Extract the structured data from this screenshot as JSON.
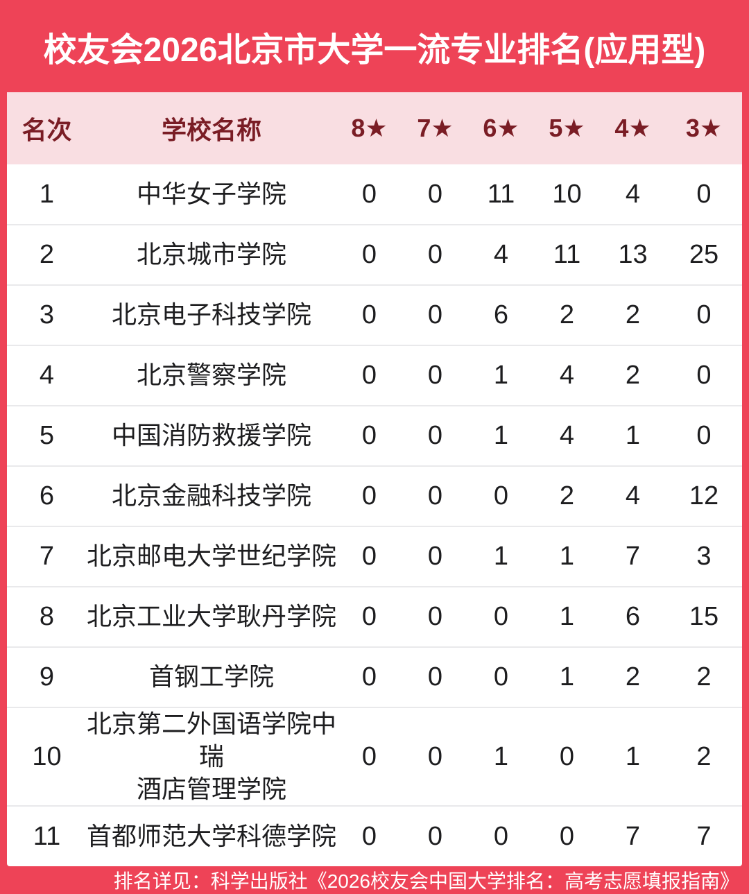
{
  "title": "校友会2026北京市大学一流专业排名(应用型)",
  "footer_note": "排名详见：科学出版社《2026校友会中国大学排名：高考志愿填报指南》",
  "colors": {
    "background_red": "#ee4357",
    "header_pink": "#f9dee2",
    "maroon": "#7a1d25",
    "body_text": "#1d1d1f",
    "divider": "#e9e9eb",
    "white": "#ffffff"
  },
  "table": {
    "columns": [
      "名次",
      "学校名称",
      "8★",
      "7★",
      "6★",
      "5★",
      "4★",
      "3★"
    ],
    "rows": [
      {
        "rank": "1",
        "school": "中华女子学院",
        "stars": [
          "0",
          "0",
          "11",
          "10",
          "4",
          "0"
        ]
      },
      {
        "rank": "2",
        "school": "北京城市学院",
        "stars": [
          "0",
          "0",
          "4",
          "11",
          "13",
          "25"
        ]
      },
      {
        "rank": "3",
        "school": "北京电子科技学院",
        "stars": [
          "0",
          "0",
          "6",
          "2",
          "2",
          "0"
        ]
      },
      {
        "rank": "4",
        "school": "北京警察学院",
        "stars": [
          "0",
          "0",
          "1",
          "4",
          "2",
          "0"
        ]
      },
      {
        "rank": "5",
        "school": "中国消防救援学院",
        "stars": [
          "0",
          "0",
          "1",
          "4",
          "1",
          "0"
        ]
      },
      {
        "rank": "6",
        "school": "北京金融科技学院",
        "stars": [
          "0",
          "0",
          "0",
          "2",
          "4",
          "12"
        ]
      },
      {
        "rank": "7",
        "school": "北京邮电大学世纪学院",
        "stars": [
          "0",
          "0",
          "1",
          "1",
          "7",
          "3"
        ]
      },
      {
        "rank": "8",
        "school": "北京工业大学耿丹学院",
        "stars": [
          "0",
          "0",
          "0",
          "1",
          "6",
          "15"
        ]
      },
      {
        "rank": "9",
        "school": "首钢工学院",
        "stars": [
          "0",
          "0",
          "0",
          "1",
          "2",
          "2"
        ]
      },
      {
        "rank": "10",
        "school": "北京第二外国语学院中瑞\n酒店管理学院",
        "stars": [
          "0",
          "0",
          "1",
          "0",
          "1",
          "2"
        ]
      },
      {
        "rank": "11",
        "school": "首都师范大学科德学院",
        "stars": [
          "0",
          "0",
          "0",
          "0",
          "7",
          "7"
        ]
      }
    ]
  },
  "chart_data": {
    "type": "table",
    "title": "校友会2026北京市大学一流专业排名(应用型)",
    "columns": [
      "名次",
      "学校名称",
      "8★",
      "7★",
      "6★",
      "5★",
      "4★",
      "3★"
    ],
    "rows": [
      [
        1,
        "中华女子学院",
        0,
        0,
        11,
        10,
        4,
        0
      ],
      [
        2,
        "北京城市学院",
        0,
        0,
        4,
        11,
        13,
        25
      ],
      [
        3,
        "北京电子科技学院",
        0,
        0,
        6,
        2,
        2,
        0
      ],
      [
        4,
        "北京警察学院",
        0,
        0,
        1,
        4,
        2,
        0
      ],
      [
        5,
        "中国消防救援学院",
        0,
        0,
        1,
        4,
        1,
        0
      ],
      [
        6,
        "北京金融科技学院",
        0,
        0,
        0,
        2,
        4,
        12
      ],
      [
        7,
        "北京邮电大学世纪学院",
        0,
        0,
        1,
        1,
        7,
        3
      ],
      [
        8,
        "北京工业大学耿丹学院",
        0,
        0,
        0,
        1,
        6,
        15
      ],
      [
        9,
        "首钢工学院",
        0,
        0,
        0,
        1,
        2,
        2
      ],
      [
        10,
        "北京第二外国语学院中瑞酒店管理学院",
        0,
        0,
        1,
        0,
        1,
        2
      ],
      [
        11,
        "首都师范大学科德学院",
        0,
        0,
        0,
        0,
        7,
        7
      ]
    ],
    "footnote": "排名详见：科学出版社《2026校友会中国大学排名：高考志愿填报指南》"
  }
}
